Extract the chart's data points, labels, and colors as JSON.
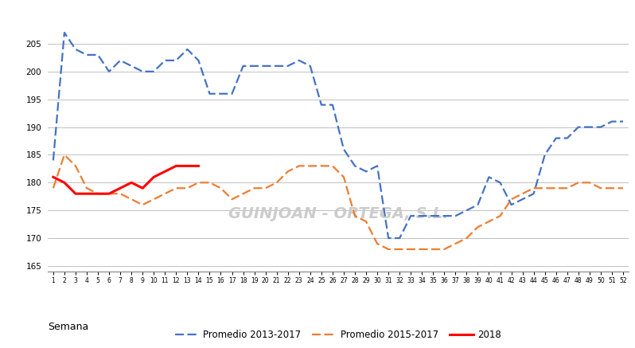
{
  "weeks": [
    1,
    2,
    3,
    4,
    5,
    6,
    7,
    8,
    9,
    10,
    11,
    12,
    13,
    14,
    15,
    16,
    17,
    18,
    19,
    20,
    21,
    22,
    23,
    24,
    25,
    26,
    27,
    28,
    29,
    30,
    31,
    32,
    33,
    34,
    35,
    36,
    37,
    38,
    39,
    40,
    41,
    42,
    43,
    44,
    45,
    46,
    47,
    48,
    49,
    50,
    51,
    52
  ],
  "blue_2013_2017": [
    184,
    207,
    204,
    203,
    203,
    200,
    202,
    201,
    200,
    200,
    202,
    202,
    204,
    202,
    196,
    196,
    196,
    201,
    201,
    201,
    201,
    201,
    202,
    201,
    194,
    194,
    186,
    183,
    182,
    183,
    170,
    170,
    174,
    174,
    174,
    174,
    174,
    175,
    176,
    181,
    180,
    176,
    177,
    178,
    185,
    188,
    188,
    190,
    190,
    190,
    191,
    191
  ],
  "orange_2015_2017": [
    179,
    185,
    183,
    179,
    178,
    178,
    178,
    177,
    176,
    177,
    178,
    179,
    179,
    180,
    180,
    179,
    177,
    178,
    179,
    179,
    180,
    182,
    183,
    183,
    183,
    183,
    181,
    174,
    173,
    169,
    168,
    168,
    168,
    168,
    168,
    168,
    169,
    170,
    172,
    173,
    174,
    177,
    178,
    179,
    179,
    179,
    179,
    180,
    180,
    179,
    179,
    179
  ],
  "red_2018": [
    181,
    180,
    178,
    178,
    178,
    178,
    179,
    180,
    179,
    181,
    182,
    183,
    183,
    183
  ],
  "red_weeks": [
    1,
    2,
    3,
    4,
    5,
    6,
    7,
    8,
    9,
    10,
    11,
    12,
    13,
    14
  ],
  "blue_color": "#4472C4",
  "orange_color": "#ED7D31",
  "red_color": "#FF0000",
  "bg_color": "#FFFFFF",
  "grid_color": "#C0C0C0",
  "ylabel_values": [
    165,
    170,
    175,
    180,
    185,
    190,
    195,
    200,
    205
  ],
  "ylim": [
    164,
    211
  ],
  "xlabel": "Semana",
  "legend_labels": [
    "Promedio 2013-2017",
    "Promedio 2015-2017",
    "2018"
  ],
  "watermark": "GUINJOAN - ORTEGA, S.L."
}
